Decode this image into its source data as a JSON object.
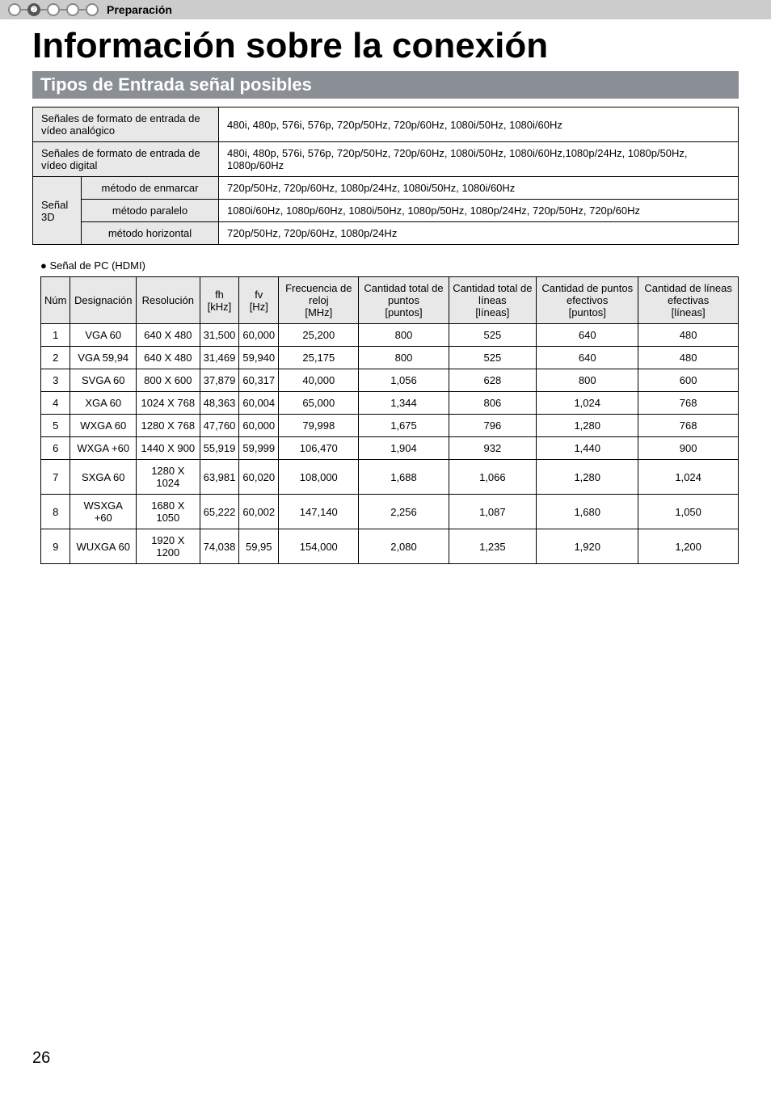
{
  "header": {
    "step_label": "❷",
    "breadcrumb": "Preparación"
  },
  "title": "Información sobre la conexión",
  "section_title": "Tipos de Entrada señal posibles",
  "signal_table": {
    "rows": [
      {
        "label": "Señales de formato de entrada de vídeo analógico",
        "value": "480i, 480p, 576i, 576p, 720p/50Hz, 720p/60Hz, 1080i/50Hz, 1080i/60Hz",
        "span_label": 2
      },
      {
        "label": "Señales de formato de entrada de vídeo digital",
        "value": "480i, 480p, 576i, 576p, 720p/50Hz, 720p/60Hz, 1080i/50Hz, 1080i/60Hz,1080p/24Hz, 1080p/50Hz, 1080p/60Hz",
        "span_label": 2
      }
    ],
    "group_label": "Señal 3D",
    "group_rows": [
      {
        "label": "método de enmarcar",
        "value": "720p/50Hz, 720p/60Hz, 1080p/24Hz, 1080i/50Hz, 1080i/60Hz"
      },
      {
        "label": "método paralelo",
        "value": "1080i/60Hz, 1080p/60Hz, 1080i/50Hz, 1080p/50Hz, 1080p/24Hz, 720p/50Hz, 720p/60Hz"
      },
      {
        "label": "método horizontal",
        "value": "720p/50Hz, 720p/60Hz, 1080p/24Hz"
      }
    ]
  },
  "pc_caption": "Señal de PC (HDMI)",
  "pc_table": {
    "columns": [
      "Núm",
      "Designación",
      "Resolución",
      "fh [kHz]",
      "fv [Hz]",
      "Frecuencia de reloj [MHz]",
      "Cantidad total de puntos [puntos]",
      "Cantidad total de líneas [líneas]",
      "Cantidad de puntos efectivos [puntos]",
      "Cantidad de líneas efectivas [líneas]"
    ],
    "rows": [
      [
        "1",
        "VGA 60",
        "640 X 480",
        "31,500",
        "60,000",
        "25,200",
        "800",
        "525",
        "640",
        "480"
      ],
      [
        "2",
        "VGA 59,94",
        "640 X 480",
        "31,469",
        "59,940",
        "25,175",
        "800",
        "525",
        "640",
        "480"
      ],
      [
        "3",
        "SVGA 60",
        "800 X 600",
        "37,879",
        "60,317",
        "40,000",
        "1,056",
        "628",
        "800",
        "600"
      ],
      [
        "4",
        "XGA 60",
        "1024 X 768",
        "48,363",
        "60,004",
        "65,000",
        "1,344",
        "806",
        "1,024",
        "768"
      ],
      [
        "5",
        "WXGA 60",
        "1280 X 768",
        "47,760",
        "60,000",
        "79,998",
        "1,675",
        "796",
        "1,280",
        "768"
      ],
      [
        "6",
        "WXGA +60",
        "1440 X 900",
        "55,919",
        "59,999",
        "106,470",
        "1,904",
        "932",
        "1,440",
        "900"
      ],
      [
        "7",
        "SXGA 60",
        "1280 X 1024",
        "63,981",
        "60,020",
        "108,000",
        "1,688",
        "1,066",
        "1,280",
        "1,024"
      ],
      [
        "8",
        "WSXGA +60",
        "1680 X 1050",
        "65,222",
        "60,002",
        "147,140",
        "2,256",
        "1,087",
        "1,680",
        "1,050"
      ],
      [
        "9",
        "WUXGA 60",
        "1920 X 1200",
        "74,038",
        "59,95",
        "154,000",
        "2,080",
        "1,235",
        "1,920",
        "1,200"
      ]
    ]
  },
  "page_number": "26",
  "style": {
    "header_bg": "#cccccc",
    "section_bg": "#8a8f96",
    "section_fg": "#ffffff",
    "cell_header_bg": "#e8e8e8",
    "border_color": "#000000",
    "title_fontsize": 44,
    "section_fontsize": 22,
    "body_fontsize": 13
  }
}
